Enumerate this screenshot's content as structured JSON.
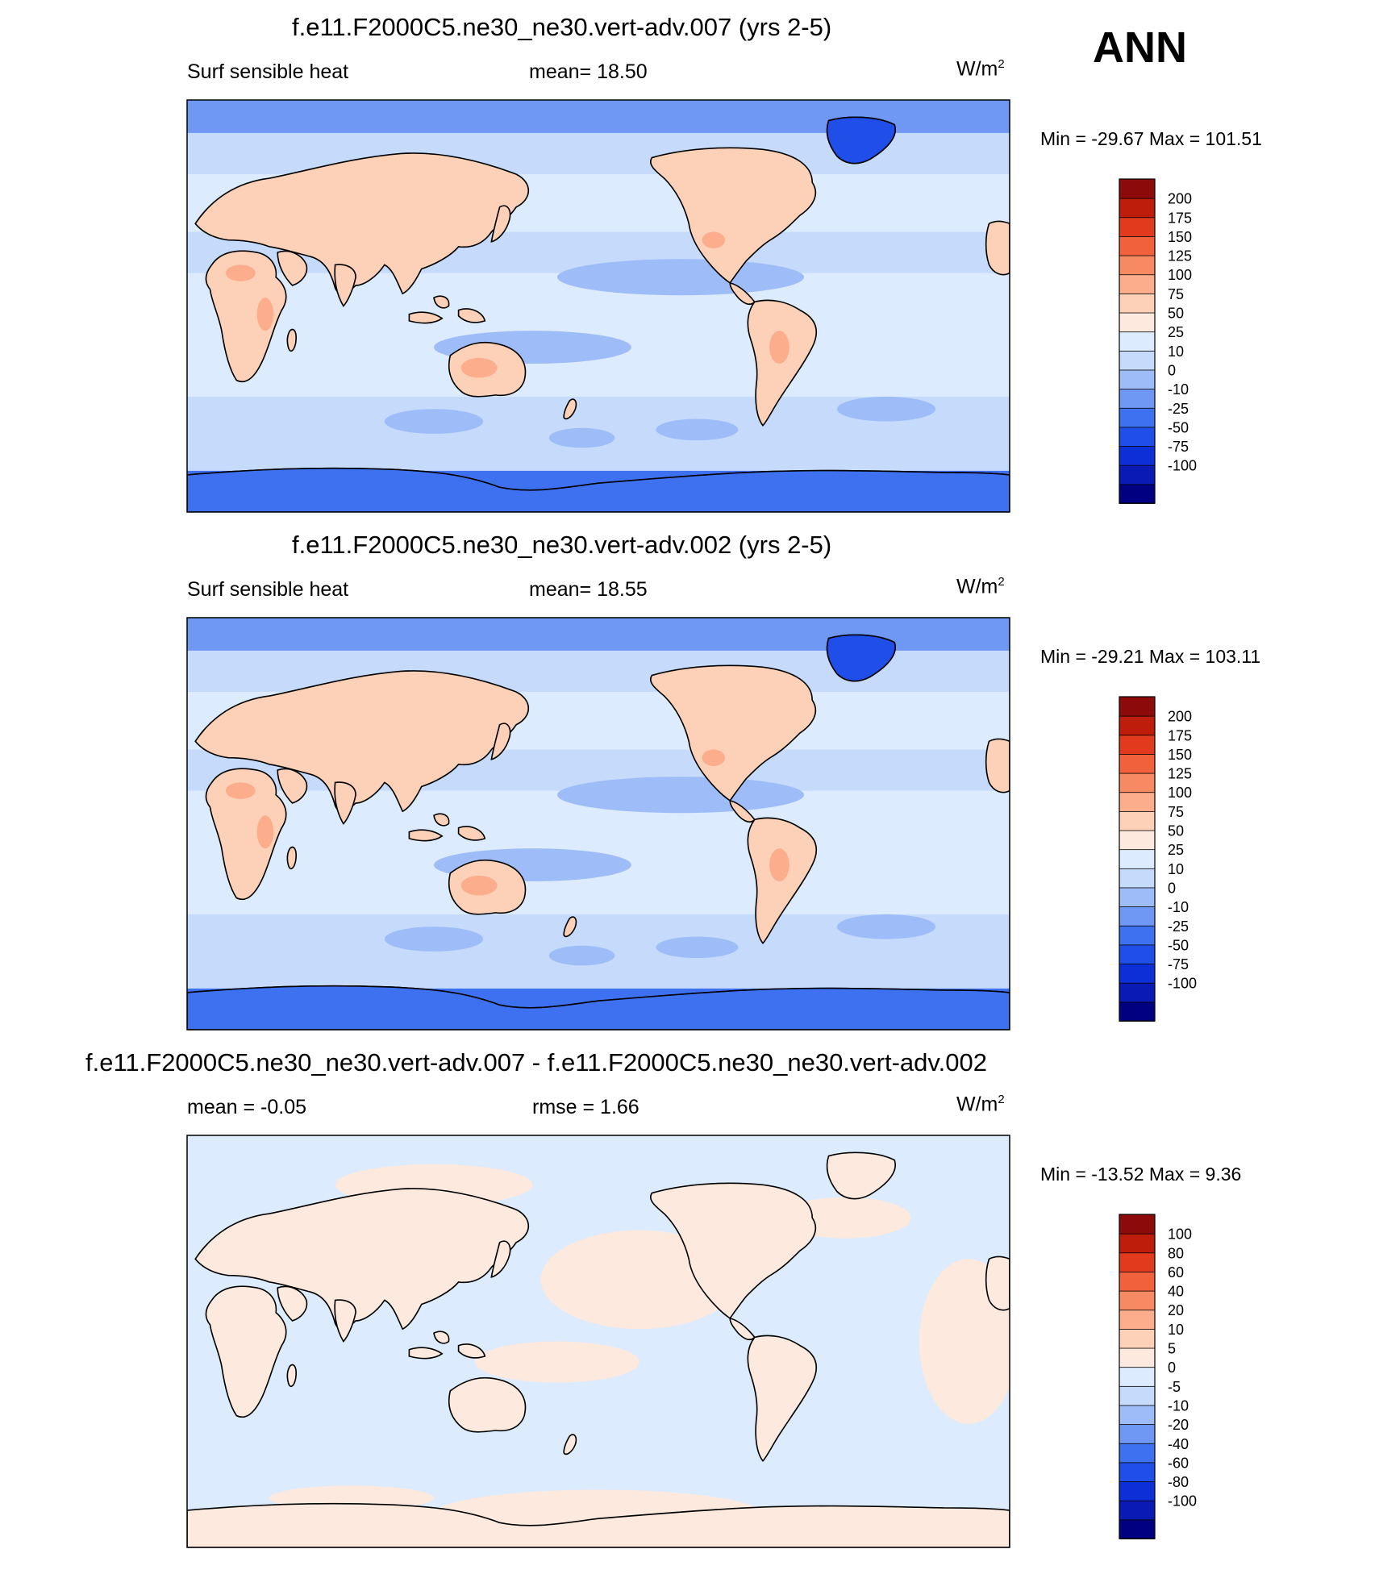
{
  "season": "ANN",
  "palettes": {
    "main": [
      "#000080",
      "#0a1ab4",
      "#0d2fd8",
      "#1f4ee8",
      "#3e71f0",
      "#6f98f5",
      "#9ebdf8",
      "#c6dafb",
      "#dcebfd",
      "#fde9dd",
      "#fdd0b8",
      "#fbad8c",
      "#f88a63",
      "#f1623c",
      "#e13a1c",
      "#bf1d0b",
      "#8c0a0a"
    ],
    "diff": [
      "#000080",
      "#0a1ab4",
      "#0d2fd8",
      "#1f4ee8",
      "#3e71f0",
      "#6f98f5",
      "#9ebdf8",
      "#c6dafb",
      "#dcebfd",
      "#fde9dd",
      "#fdd0b8",
      "#fbad8c",
      "#f88a63",
      "#f1623c",
      "#e13a1c",
      "#bf1d0b",
      "#8c0a0a"
    ]
  },
  "panels": [
    {
      "title": "f.e11.F2000C5.ne30_ne30.vert-adv.007 (yrs 2-5)",
      "left": "Surf sensible heat",
      "center": "mean=  18.50",
      "unit": "W/m",
      "unit_sup": "2",
      "minmax": "Min = -29.67 Max = 101.51"
    },
    {
      "title": "f.e11.F2000C5.ne30_ne30.vert-adv.002 (yrs 2-5)",
      "left": "Surf sensible heat",
      "center": "mean=  18.55",
      "unit": "W/m",
      "unit_sup": "2",
      "minmax": "Min = -29.21 Max = 103.11"
    },
    {
      "title": "f.e11.F2000C5.ne30_ne30.vert-adv.007 - f.e11.F2000C5.ne30_ne30.vert-adv.002",
      "left": "mean =  -0.05",
      "center": "rmse =   1.66",
      "unit": "W/m",
      "unit_sup": "2",
      "minmax": "Min = -13.52 Max =   9.36"
    }
  ],
  "chart_data": [
    {
      "type": "heatmap",
      "title": "f.e11.F2000C5.ne30_ne30.vert-adv.007 (yrs 2-5)",
      "variable": "Surf sensible heat",
      "units": "W/m2",
      "mean": 18.5,
      "min": -29.67,
      "max": 101.51,
      "colorbar_levels": [
        200,
        175,
        150,
        125,
        100,
        75,
        50,
        25,
        10,
        0,
        -10,
        -25,
        -50,
        -75,
        -100
      ]
    },
    {
      "type": "heatmap",
      "title": "f.e11.F2000C5.ne30_ne30.vert-adv.002 (yrs 2-5)",
      "variable": "Surf sensible heat",
      "units": "W/m2",
      "mean": 18.55,
      "min": -29.21,
      "max": 103.11,
      "colorbar_levels": [
        200,
        175,
        150,
        125,
        100,
        75,
        50,
        25,
        10,
        0,
        -10,
        -25,
        -50,
        -75,
        -100
      ]
    },
    {
      "type": "heatmap",
      "title": "f.e11.F2000C5.ne30_ne30.vert-adv.007 - f.e11.F2000C5.ne30_ne30.vert-adv.002",
      "units": "W/m2",
      "mean": -0.05,
      "rmse": 1.66,
      "min": -13.52,
      "max": 9.36,
      "colorbar_levels": [
        100,
        80,
        60,
        40,
        20,
        10,
        5,
        0,
        -5,
        -10,
        -20,
        -40,
        -60,
        -80,
        -100
      ]
    }
  ]
}
